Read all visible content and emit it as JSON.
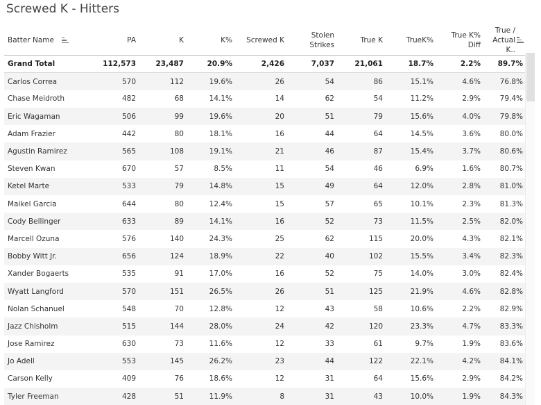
{
  "title": "Screwed K - Hitters",
  "columns": {
    "name": "Batter Name",
    "pa": "PA",
    "k": "K",
    "kpct": "K%",
    "screwed": "Screwed K",
    "stolen_1": "Stolen",
    "stolen_2": "Strikes",
    "truek": "True K",
    "truekpct": "TrueK%",
    "diff_1": "True K%",
    "diff_2": "Diff",
    "ratio_1": "True /",
    "ratio_2": "Actual K.."
  },
  "grand_total": {
    "name": "Grand Total",
    "pa": "112,573",
    "k": "23,487",
    "kpct": "20.9%",
    "screwed": "2,426",
    "stolen": "7,037",
    "truek": "21,061",
    "truekpct": "18.7%",
    "diff": "2.2%",
    "ratio": "89.7%"
  },
  "rows": [
    {
      "name": "Carlos Correa",
      "pa": "570",
      "k": "112",
      "kpct": "19.6%",
      "screwed": "26",
      "stolen": "54",
      "truek": "86",
      "truekpct": "15.1%",
      "diff": "4.6%",
      "ratio": "76.8%"
    },
    {
      "name": "Chase Meidroth",
      "pa": "482",
      "k": "68",
      "kpct": "14.1%",
      "screwed": "14",
      "stolen": "62",
      "truek": "54",
      "truekpct": "11.2%",
      "diff": "2.9%",
      "ratio": "79.4%"
    },
    {
      "name": "Eric Wagaman",
      "pa": "506",
      "k": "99",
      "kpct": "19.6%",
      "screwed": "20",
      "stolen": "51",
      "truek": "79",
      "truekpct": "15.6%",
      "diff": "4.0%",
      "ratio": "79.8%"
    },
    {
      "name": "Adam Frazier",
      "pa": "442",
      "k": "80",
      "kpct": "18.1%",
      "screwed": "16",
      "stolen": "44",
      "truek": "64",
      "truekpct": "14.5%",
      "diff": "3.6%",
      "ratio": "80.0%"
    },
    {
      "name": "Agustin Ramirez",
      "pa": "565",
      "k": "108",
      "kpct": "19.1%",
      "screwed": "21",
      "stolen": "46",
      "truek": "87",
      "truekpct": "15.4%",
      "diff": "3.7%",
      "ratio": "80.6%"
    },
    {
      "name": "Steven Kwan",
      "pa": "670",
      "k": "57",
      "kpct": "8.5%",
      "screwed": "11",
      "stolen": "54",
      "truek": "46",
      "truekpct": "6.9%",
      "diff": "1.6%",
      "ratio": "80.7%"
    },
    {
      "name": "Ketel Marte",
      "pa": "533",
      "k": "79",
      "kpct": "14.8%",
      "screwed": "15",
      "stolen": "49",
      "truek": "64",
      "truekpct": "12.0%",
      "diff": "2.8%",
      "ratio": "81.0%"
    },
    {
      "name": "Maikel Garcia",
      "pa": "644",
      "k": "80",
      "kpct": "12.4%",
      "screwed": "15",
      "stolen": "57",
      "truek": "65",
      "truekpct": "10.1%",
      "diff": "2.3%",
      "ratio": "81.3%"
    },
    {
      "name": "Cody Bellinger",
      "pa": "633",
      "k": "89",
      "kpct": "14.1%",
      "screwed": "16",
      "stolen": "52",
      "truek": "73",
      "truekpct": "11.5%",
      "diff": "2.5%",
      "ratio": "82.0%"
    },
    {
      "name": "Marcell Ozuna",
      "pa": "576",
      "k": "140",
      "kpct": "24.3%",
      "screwed": "25",
      "stolen": "62",
      "truek": "115",
      "truekpct": "20.0%",
      "diff": "4.3%",
      "ratio": "82.1%"
    },
    {
      "name": "Bobby Witt Jr.",
      "pa": "656",
      "k": "124",
      "kpct": "18.9%",
      "screwed": "22",
      "stolen": "40",
      "truek": "102",
      "truekpct": "15.5%",
      "diff": "3.4%",
      "ratio": "82.3%"
    },
    {
      "name": "Xander Bogaerts",
      "pa": "535",
      "k": "91",
      "kpct": "17.0%",
      "screwed": "16",
      "stolen": "52",
      "truek": "75",
      "truekpct": "14.0%",
      "diff": "3.0%",
      "ratio": "82.4%"
    },
    {
      "name": "Wyatt Langford",
      "pa": "570",
      "k": "151",
      "kpct": "26.5%",
      "screwed": "26",
      "stolen": "51",
      "truek": "125",
      "truekpct": "21.9%",
      "diff": "4.6%",
      "ratio": "82.8%"
    },
    {
      "name": "Nolan Schanuel",
      "pa": "548",
      "k": "70",
      "kpct": "12.8%",
      "screwed": "12",
      "stolen": "43",
      "truek": "58",
      "truekpct": "10.6%",
      "diff": "2.2%",
      "ratio": "82.9%"
    },
    {
      "name": "Jazz Chisholm",
      "pa": "515",
      "k": "144",
      "kpct": "28.0%",
      "screwed": "24",
      "stolen": "42",
      "truek": "120",
      "truekpct": "23.3%",
      "diff": "4.7%",
      "ratio": "83.3%"
    },
    {
      "name": "Jose Ramirez",
      "pa": "630",
      "k": "73",
      "kpct": "11.6%",
      "screwed": "12",
      "stolen": "33",
      "truek": "61",
      "truekpct": "9.7%",
      "diff": "1.9%",
      "ratio": "83.6%"
    },
    {
      "name": "Jo Adell",
      "pa": "553",
      "k": "145",
      "kpct": "26.2%",
      "screwed": "23",
      "stolen": "44",
      "truek": "122",
      "truekpct": "22.1%",
      "diff": "4.2%",
      "ratio": "84.1%"
    },
    {
      "name": "Carson Kelly",
      "pa": "409",
      "k": "76",
      "kpct": "18.6%",
      "screwed": "12",
      "stolen": "31",
      "truek": "64",
      "truekpct": "15.6%",
      "diff": "2.9%",
      "ratio": "84.2%"
    },
    {
      "name": "Tyler Freeman",
      "pa": "428",
      "k": "51",
      "kpct": "11.9%",
      "screwed": "8",
      "stolen": "31",
      "truek": "43",
      "truekpct": "10.0%",
      "diff": "1.9%",
      "ratio": "84.3%"
    }
  ],
  "icons": {
    "sort": "sort-icon"
  },
  "colors": {
    "stripe": "#f4f4f4",
    "text": "#333333"
  }
}
